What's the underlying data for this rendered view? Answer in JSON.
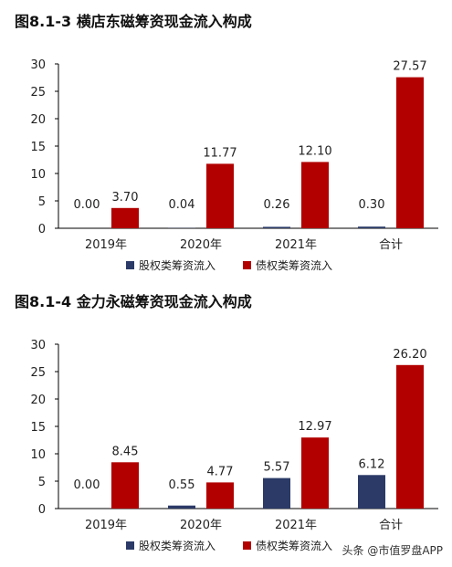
{
  "colors": {
    "equity": "#2b3a67",
    "debt": "#b20000"
  },
  "legend_labels": {
    "equity": "股权类筹资流入",
    "debt": "债权类筹资流入"
  },
  "chart_data": [
    {
      "type": "bar",
      "title": "图8.1-3 横店东磁筹资现金流入构成",
      "categories": [
        "2019年",
        "2020年",
        "2021年",
        "合计"
      ],
      "series": [
        {
          "name": "股权类筹资流入",
          "values": [
            0.0,
            0.04,
            0.26,
            0.3
          ],
          "labels": [
            "0.00",
            "0.04",
            "0.26",
            "0.30"
          ]
        },
        {
          "name": "债权类筹资流入",
          "values": [
            3.7,
            11.77,
            12.1,
            27.57
          ],
          "labels": [
            "3.70",
            "11.77",
            "12.10",
            "27.57"
          ]
        }
      ],
      "ylim": [
        0,
        30
      ],
      "yticks": [
        "0",
        "5",
        "10",
        "15",
        "20",
        "25",
        "30"
      ],
      "legend": "bottom"
    },
    {
      "type": "bar",
      "title": "图8.1-4 金力永磁筹资现金流入构成",
      "categories": [
        "2019年",
        "2020年",
        "2021年",
        "合计"
      ],
      "series": [
        {
          "name": "股权类筹资流入",
          "values": [
            0.0,
            0.55,
            5.57,
            6.12
          ],
          "labels": [
            "0.00",
            "0.55",
            "5.57",
            "6.12"
          ]
        },
        {
          "name": "债权类筹资流入",
          "values": [
            8.45,
            4.77,
            12.97,
            26.2
          ],
          "labels": [
            "8.45",
            "4.77",
            "12.97",
            "26.20"
          ]
        }
      ],
      "ylim": [
        0,
        30
      ],
      "yticks": [
        "0",
        "5",
        "10",
        "15",
        "20",
        "25",
        "30"
      ],
      "legend": "bottom"
    }
  ],
  "watermark": "头条 @市值罗盘APP"
}
